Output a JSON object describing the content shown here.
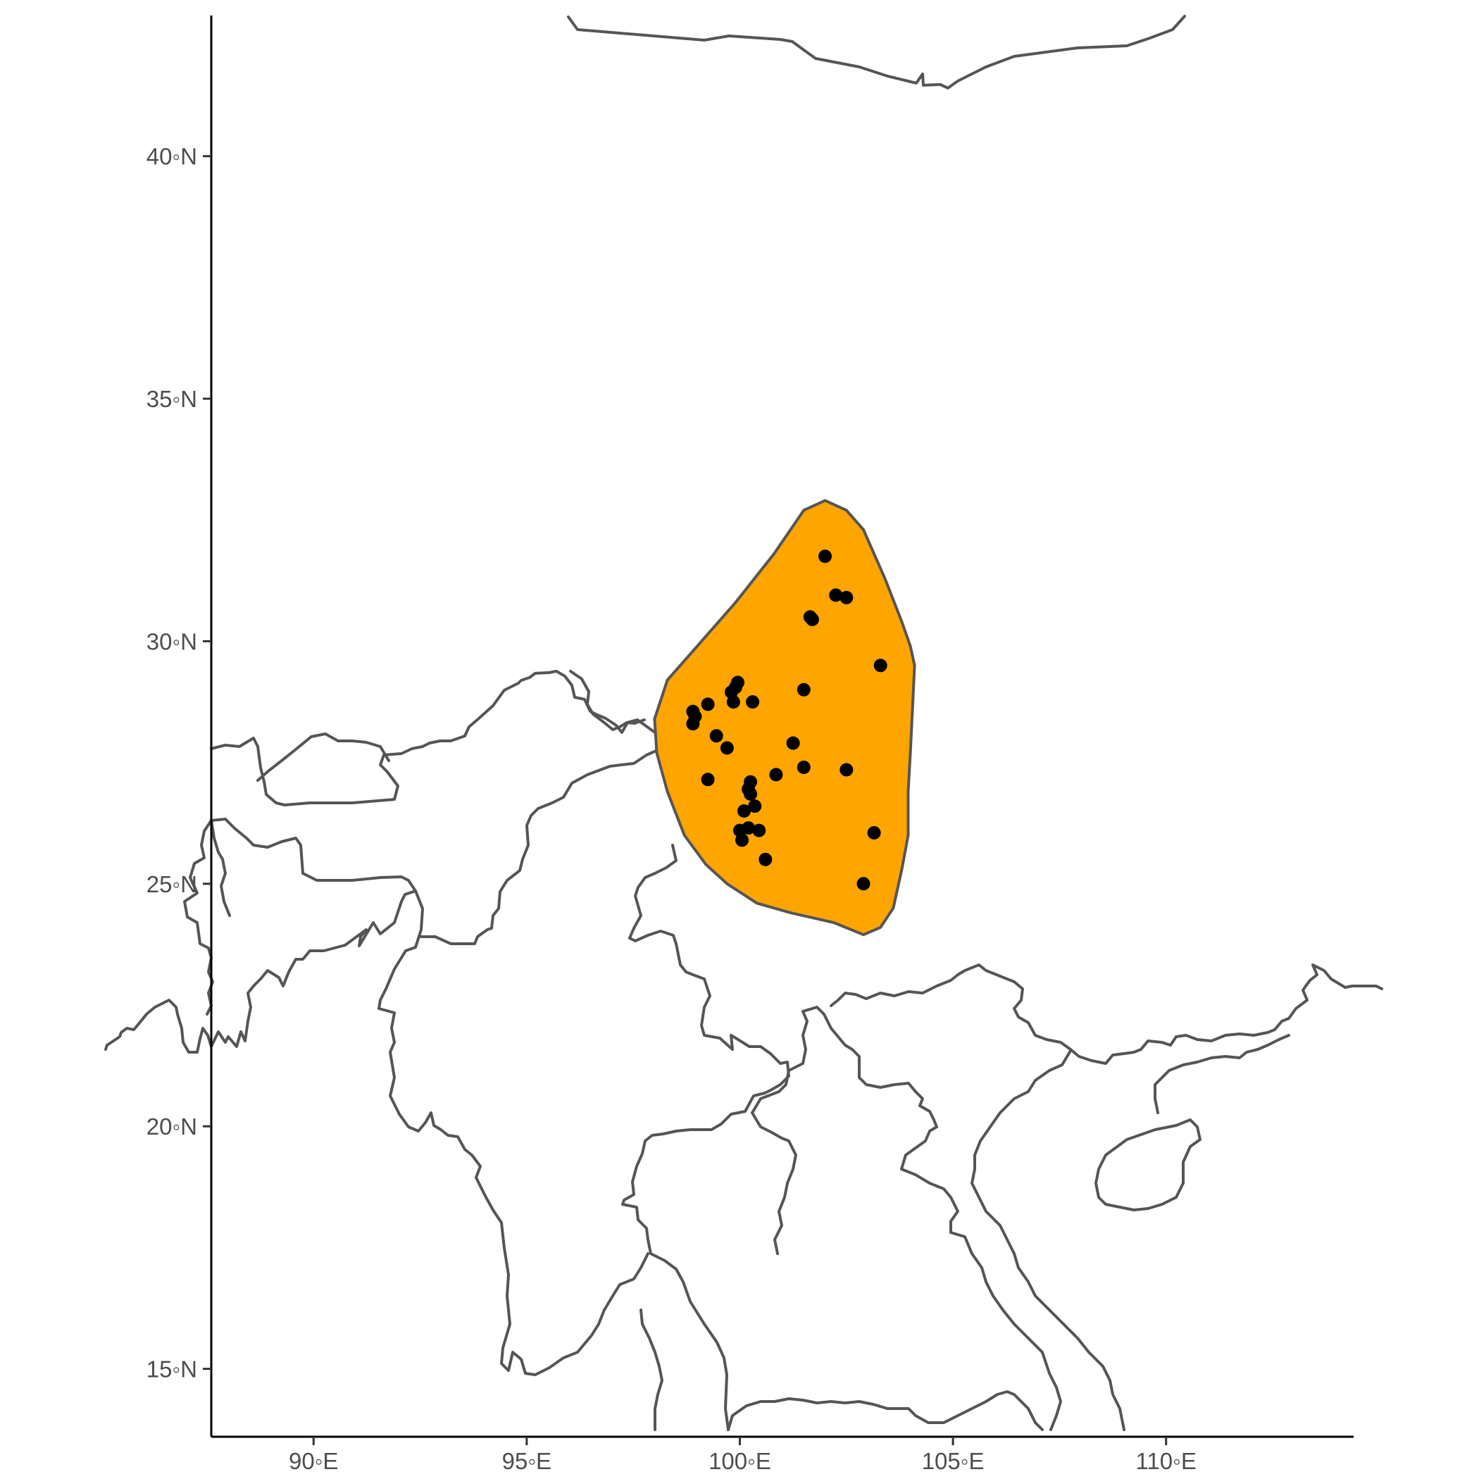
{
  "chart_data": {
    "type": "scatter",
    "subtype": "map",
    "title": "",
    "xlabel": "",
    "ylabel": "",
    "xlim": [
      87.6,
      114.4
    ],
    "ylim": [
      13.6,
      42.9
    ],
    "x_ticks": [
      {
        "value": 90,
        "label": "90◦E"
      },
      {
        "value": 95,
        "label": "95◦E"
      },
      {
        "value": 100,
        "label": "100◦E"
      },
      {
        "value": 105,
        "label": "105◦E"
      },
      {
        "value": 110,
        "label": "110◦E"
      }
    ],
    "y_ticks": [
      {
        "value": 15,
        "label": "15◦N"
      },
      {
        "value": 20,
        "label": "20◦N"
      },
      {
        "value": 25,
        "label": "25◦N"
      },
      {
        "value": 30,
        "label": "30◦N"
      },
      {
        "value": 35,
        "label": "35◦N"
      },
      {
        "value": 40,
        "label": "40◦N"
      }
    ],
    "grid": false,
    "legend": "none",
    "colors": {
      "range_fill": "#FFA500",
      "outline": "#555555",
      "points": "#000000",
      "axis": "#000000",
      "tick_label": "#4d4d4d"
    },
    "range_polygon": [
      [
        102.0,
        32.9
      ],
      [
        102.5,
        32.7
      ],
      [
        102.9,
        32.3
      ],
      [
        103.4,
        31.3
      ],
      [
        103.8,
        30.4
      ],
      [
        104.0,
        29.9
      ],
      [
        104.1,
        29.5
      ],
      [
        104.05,
        28.6
      ],
      [
        104.0,
        27.7
      ],
      [
        103.95,
        26.9
      ],
      [
        103.95,
        26.0
      ],
      [
        103.8,
        25.3
      ],
      [
        103.6,
        24.5
      ],
      [
        103.3,
        24.1
      ],
      [
        102.9,
        23.95
      ],
      [
        102.2,
        24.2
      ],
      [
        101.2,
        24.4
      ],
      [
        100.4,
        24.6
      ],
      [
        99.7,
        25.0
      ],
      [
        99.2,
        25.4
      ],
      [
        98.7,
        26.0
      ],
      [
        98.3,
        26.9
      ],
      [
        98.05,
        27.7
      ],
      [
        98.0,
        28.4
      ],
      [
        98.3,
        29.2
      ],
      [
        99.0,
        29.9
      ],
      [
        99.9,
        30.8
      ],
      [
        100.8,
        31.8
      ],
      [
        101.5,
        32.7
      ]
    ],
    "points": [
      {
        "lon": 102.0,
        "lat": 31.75
      },
      {
        "lon": 102.25,
        "lat": 30.95
      },
      {
        "lon": 102.5,
        "lat": 30.9
      },
      {
        "lon": 101.65,
        "lat": 30.5
      },
      {
        "lon": 101.7,
        "lat": 30.45
      },
      {
        "lon": 103.3,
        "lat": 29.5
      },
      {
        "lon": 101.5,
        "lat": 29.0
      },
      {
        "lon": 99.95,
        "lat": 29.15
      },
      {
        "lon": 99.9,
        "lat": 29.05
      },
      {
        "lon": 99.8,
        "lat": 28.95
      },
      {
        "lon": 99.85,
        "lat": 28.75
      },
      {
        "lon": 100.3,
        "lat": 28.75
      },
      {
        "lon": 99.25,
        "lat": 28.7
      },
      {
        "lon": 98.9,
        "lat": 28.55
      },
      {
        "lon": 98.95,
        "lat": 28.45
      },
      {
        "lon": 98.9,
        "lat": 28.3
      },
      {
        "lon": 99.45,
        "lat": 28.05
      },
      {
        "lon": 99.7,
        "lat": 27.8
      },
      {
        "lon": 101.25,
        "lat": 27.9
      },
      {
        "lon": 101.5,
        "lat": 27.4
      },
      {
        "lon": 102.5,
        "lat": 27.35
      },
      {
        "lon": 100.85,
        "lat": 27.25
      },
      {
        "lon": 99.25,
        "lat": 27.15
      },
      {
        "lon": 100.25,
        "lat": 27.1
      },
      {
        "lon": 100.2,
        "lat": 26.95
      },
      {
        "lon": 100.25,
        "lat": 26.85
      },
      {
        "lon": 100.35,
        "lat": 26.6
      },
      {
        "lon": 100.1,
        "lat": 26.5
      },
      {
        "lon": 100.0,
        "lat": 26.1
      },
      {
        "lon": 100.2,
        "lat": 26.15
      },
      {
        "lon": 100.45,
        "lat": 26.1
      },
      {
        "lon": 100.05,
        "lat": 25.9
      },
      {
        "lon": 100.6,
        "lat": 25.5
      },
      {
        "lon": 103.15,
        "lat": 26.05
      },
      {
        "lon": 102.9,
        "lat": 25.0
      }
    ]
  }
}
